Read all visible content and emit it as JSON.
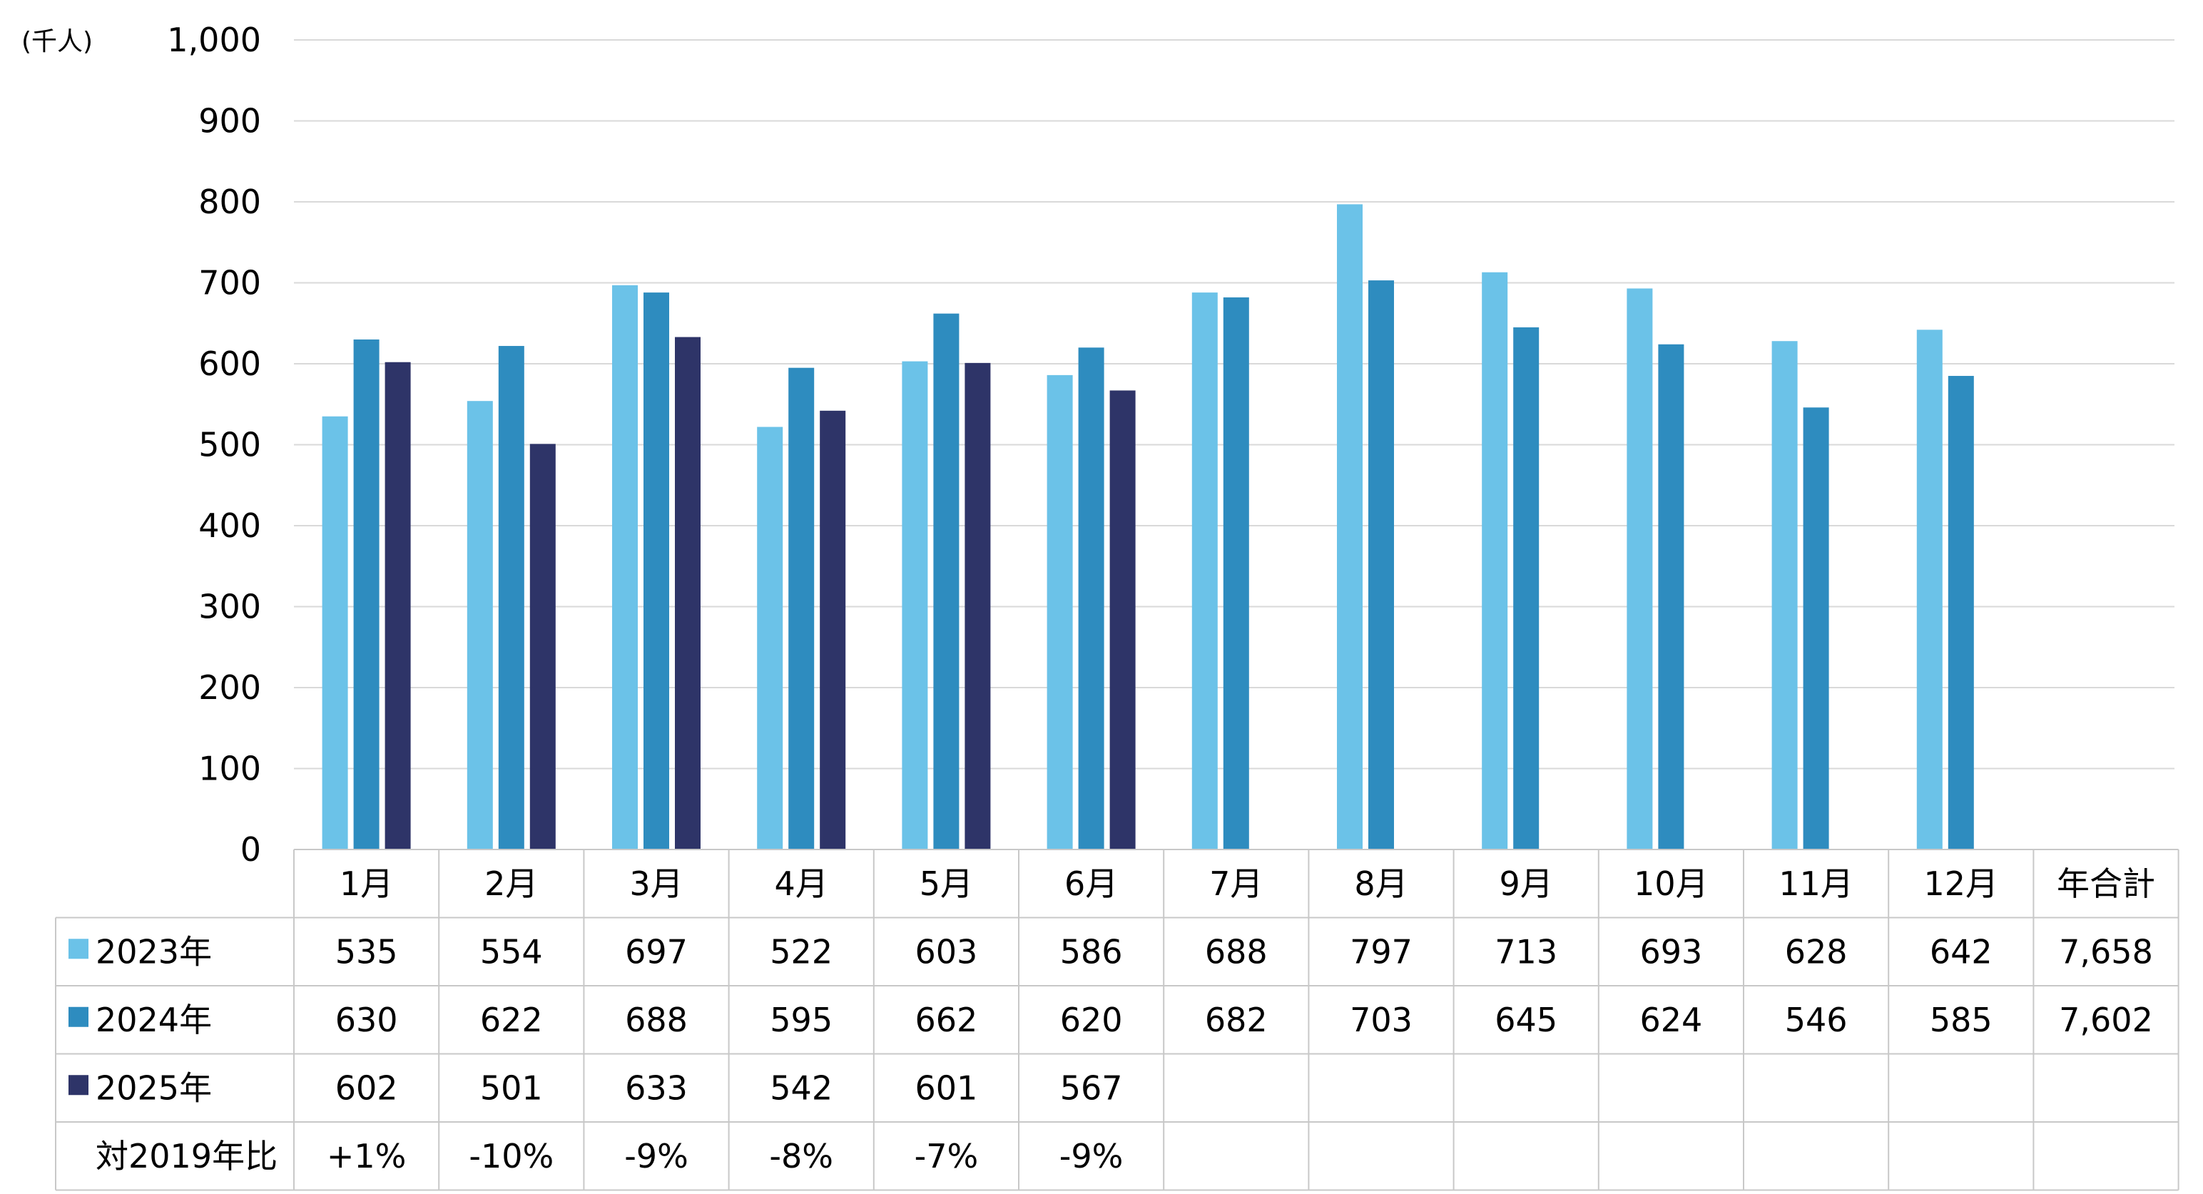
{
  "chart_data": {
    "type": "bar",
    "unit_label": "(千人)",
    "categories": [
      "1月",
      "2月",
      "3月",
      "4月",
      "5月",
      "6月",
      "7月",
      "8月",
      "9月",
      "10月",
      "11月",
      "12月"
    ],
    "total_label": "年合計",
    "ylim": [
      0,
      1000
    ],
    "yticks": [
      "0",
      "100",
      "200",
      "300",
      "400",
      "500",
      "600",
      "700",
      "800",
      "900",
      "1,000"
    ],
    "grid": true,
    "legend": "data-table",
    "series": [
      {
        "name": "2023年",
        "color": "#6BC2E8",
        "values": [
          535,
          554,
          697,
          522,
          603,
          586,
          688,
          797,
          713,
          693,
          628,
          642
        ],
        "labels": [
          "535",
          "554",
          "697",
          "522",
          "603",
          "586",
          "688",
          "797",
          "713",
          "693",
          "628",
          "642"
        ],
        "total": "7,658"
      },
      {
        "name": "2024年",
        "color": "#2E8CBF",
        "values": [
          630,
          622,
          688,
          595,
          662,
          620,
          682,
          703,
          645,
          624,
          546,
          585
        ],
        "labels": [
          "630",
          "622",
          "688",
          "595",
          "662",
          "620",
          "682",
          "703",
          "645",
          "624",
          "546",
          "585"
        ],
        "total": "7,602"
      },
      {
        "name": "2025年",
        "color": "#2E3468",
        "values": [
          602,
          501,
          633,
          542,
          601,
          567,
          null,
          null,
          null,
          null,
          null,
          null
        ],
        "labels": [
          "602",
          "501",
          "633",
          "542",
          "601",
          "567",
          "",
          "",
          "",
          "",
          "",
          ""
        ],
        "total": ""
      }
    ],
    "ratio_row": {
      "label": "対2019年比",
      "values": [
        "+1%",
        "-10%",
        "-9%",
        "-8%",
        "-7%",
        "-9%",
        "",
        "",
        "",
        "",
        "",
        ""
      ],
      "total": ""
    }
  }
}
